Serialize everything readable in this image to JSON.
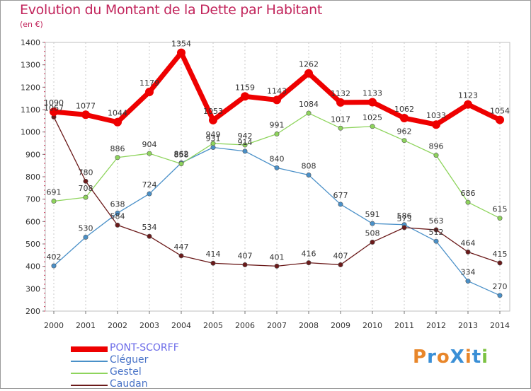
{
  "title": "Evolution du Montant de la Dette par Habitant",
  "subtitle": "(en €)",
  "logo": {
    "text": "ProXiti",
    "colors": [
      "#e8862a",
      "#3a8fd6",
      "#e8862a",
      "#3a8fd6",
      "#e8862a",
      "#3a8fd6",
      "#7cc242"
    ]
  },
  "chart_data": {
    "type": "line",
    "x": [
      "2000",
      "2001",
      "2002",
      "2003",
      "2004",
      "2005",
      "2006",
      "2007",
      "2008",
      "2009",
      "2010",
      "2011",
      "2012",
      "2013",
      "2014"
    ],
    "ylim": [
      200,
      1400
    ],
    "yticks": [
      "200",
      "300",
      "400",
      "500",
      "600",
      "700",
      "800",
      "900",
      "1000",
      "1100",
      "1200",
      "1300",
      "1400"
    ],
    "grid": "vertical dashed",
    "legend_position": "bottom-left",
    "series": [
      {
        "name": "PONT-SCORFF",
        "color": "#ee0000",
        "values": [
          1090,
          1077,
          1044,
          1179,
          1354,
          1053,
          1159,
          1143,
          1262,
          1132,
          1133,
          1062,
          1033,
          1123,
          1054
        ],
        "labels": [
          "1090",
          "1077",
          "1044",
          "1179",
          "1354",
          "1053",
          "1159",
          "1143",
          "1262",
          "1132",
          "1133",
          "1062",
          "1033",
          "1123",
          "1054"
        ]
      },
      {
        "name": "Cléguer",
        "color": "#4a90c8",
        "values": [
          402,
          530,
          638,
          724,
          862,
          931,
          914,
          840,
          808,
          677,
          591,
          586,
          512,
          334,
          270
        ],
        "labels": [
          "402",
          "530",
          "638",
          "724",
          "862",
          "931",
          "914",
          "840",
          "808",
          "677",
          "591",
          "586",
          "512",
          "334",
          "270"
        ]
      },
      {
        "name": "Gestel",
        "color": "#8ed45c",
        "values": [
          691,
          708,
          886,
          904,
          858,
          949,
          942,
          991,
          1084,
          1017,
          1025,
          962,
          896,
          686,
          615
        ],
        "labels": [
          "691",
          "708",
          "886",
          "904",
          "858",
          "949",
          "942",
          "991",
          "1084",
          "1017",
          "1025",
          "962",
          "896",
          "686",
          "615"
        ]
      },
      {
        "name": "Caudan",
        "color": "#6b1a1a",
        "values": [
          1067,
          780,
          584,
          534,
          447,
          414,
          407,
          401,
          416,
          407,
          508,
          573,
          563,
          464,
          415
        ],
        "labels": [
          "1067",
          "780",
          "584",
          "534",
          "447",
          "414",
          "407",
          "401",
          "416",
          "407",
          "508",
          "573",
          "563",
          "464",
          "415"
        ]
      }
    ]
  }
}
